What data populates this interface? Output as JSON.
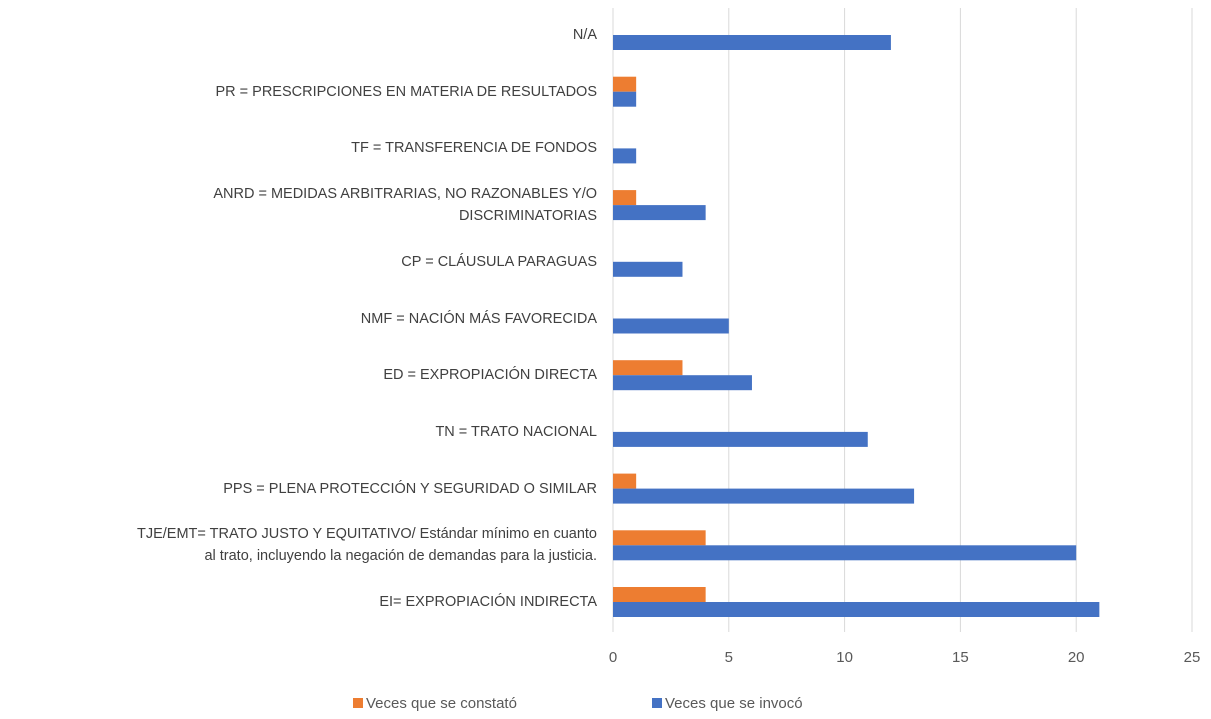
{
  "chart_data": {
    "type": "hbar",
    "categories": [
      "N/A",
      "PR = PRESCRIPCIONES EN MATERIA DE RESULTADOS",
      "TF = TRANSFERENCIA DE FONDOS",
      "ANRD = MEDIDAS ARBITRARIAS, NO RAZONABLES Y/O\nDISCRIMINATORIAS",
      "CP = CLÁUSULA PARAGUAS",
      "NMF = NACIÓN MÁS FAVORECIDA",
      "ED = EXPROPIACIÓN DIRECTA",
      "TN = TRATO NACIONAL",
      "PPS = PLENA PROTECCIÓN Y SEGURIDAD O SIMILAR",
      "TJE/EMT= TRATO JUSTO Y EQUITATIVO/ Estándar mínimo en cuanto\nal trato, incluyendo la negación de demandas para la justicia.",
      "EI= EXPROPIACIÓN INDIRECTA"
    ],
    "series": [
      {
        "name": "Veces que se constató",
        "color": "#ed7d31",
        "values": [
          0,
          1,
          0,
          1,
          0,
          0,
          3,
          0,
          1,
          4,
          4
        ]
      },
      {
        "name": "Veces que se invocó",
        "color": "#4472c4",
        "values": [
          12,
          1,
          1,
          4,
          3,
          5,
          6,
          11,
          13,
          20,
          21
        ]
      }
    ],
    "xlim": [
      0,
      25
    ],
    "xticks": [
      0,
      5,
      10,
      15,
      20,
      25
    ],
    "grid": true,
    "legend": "bottom"
  }
}
